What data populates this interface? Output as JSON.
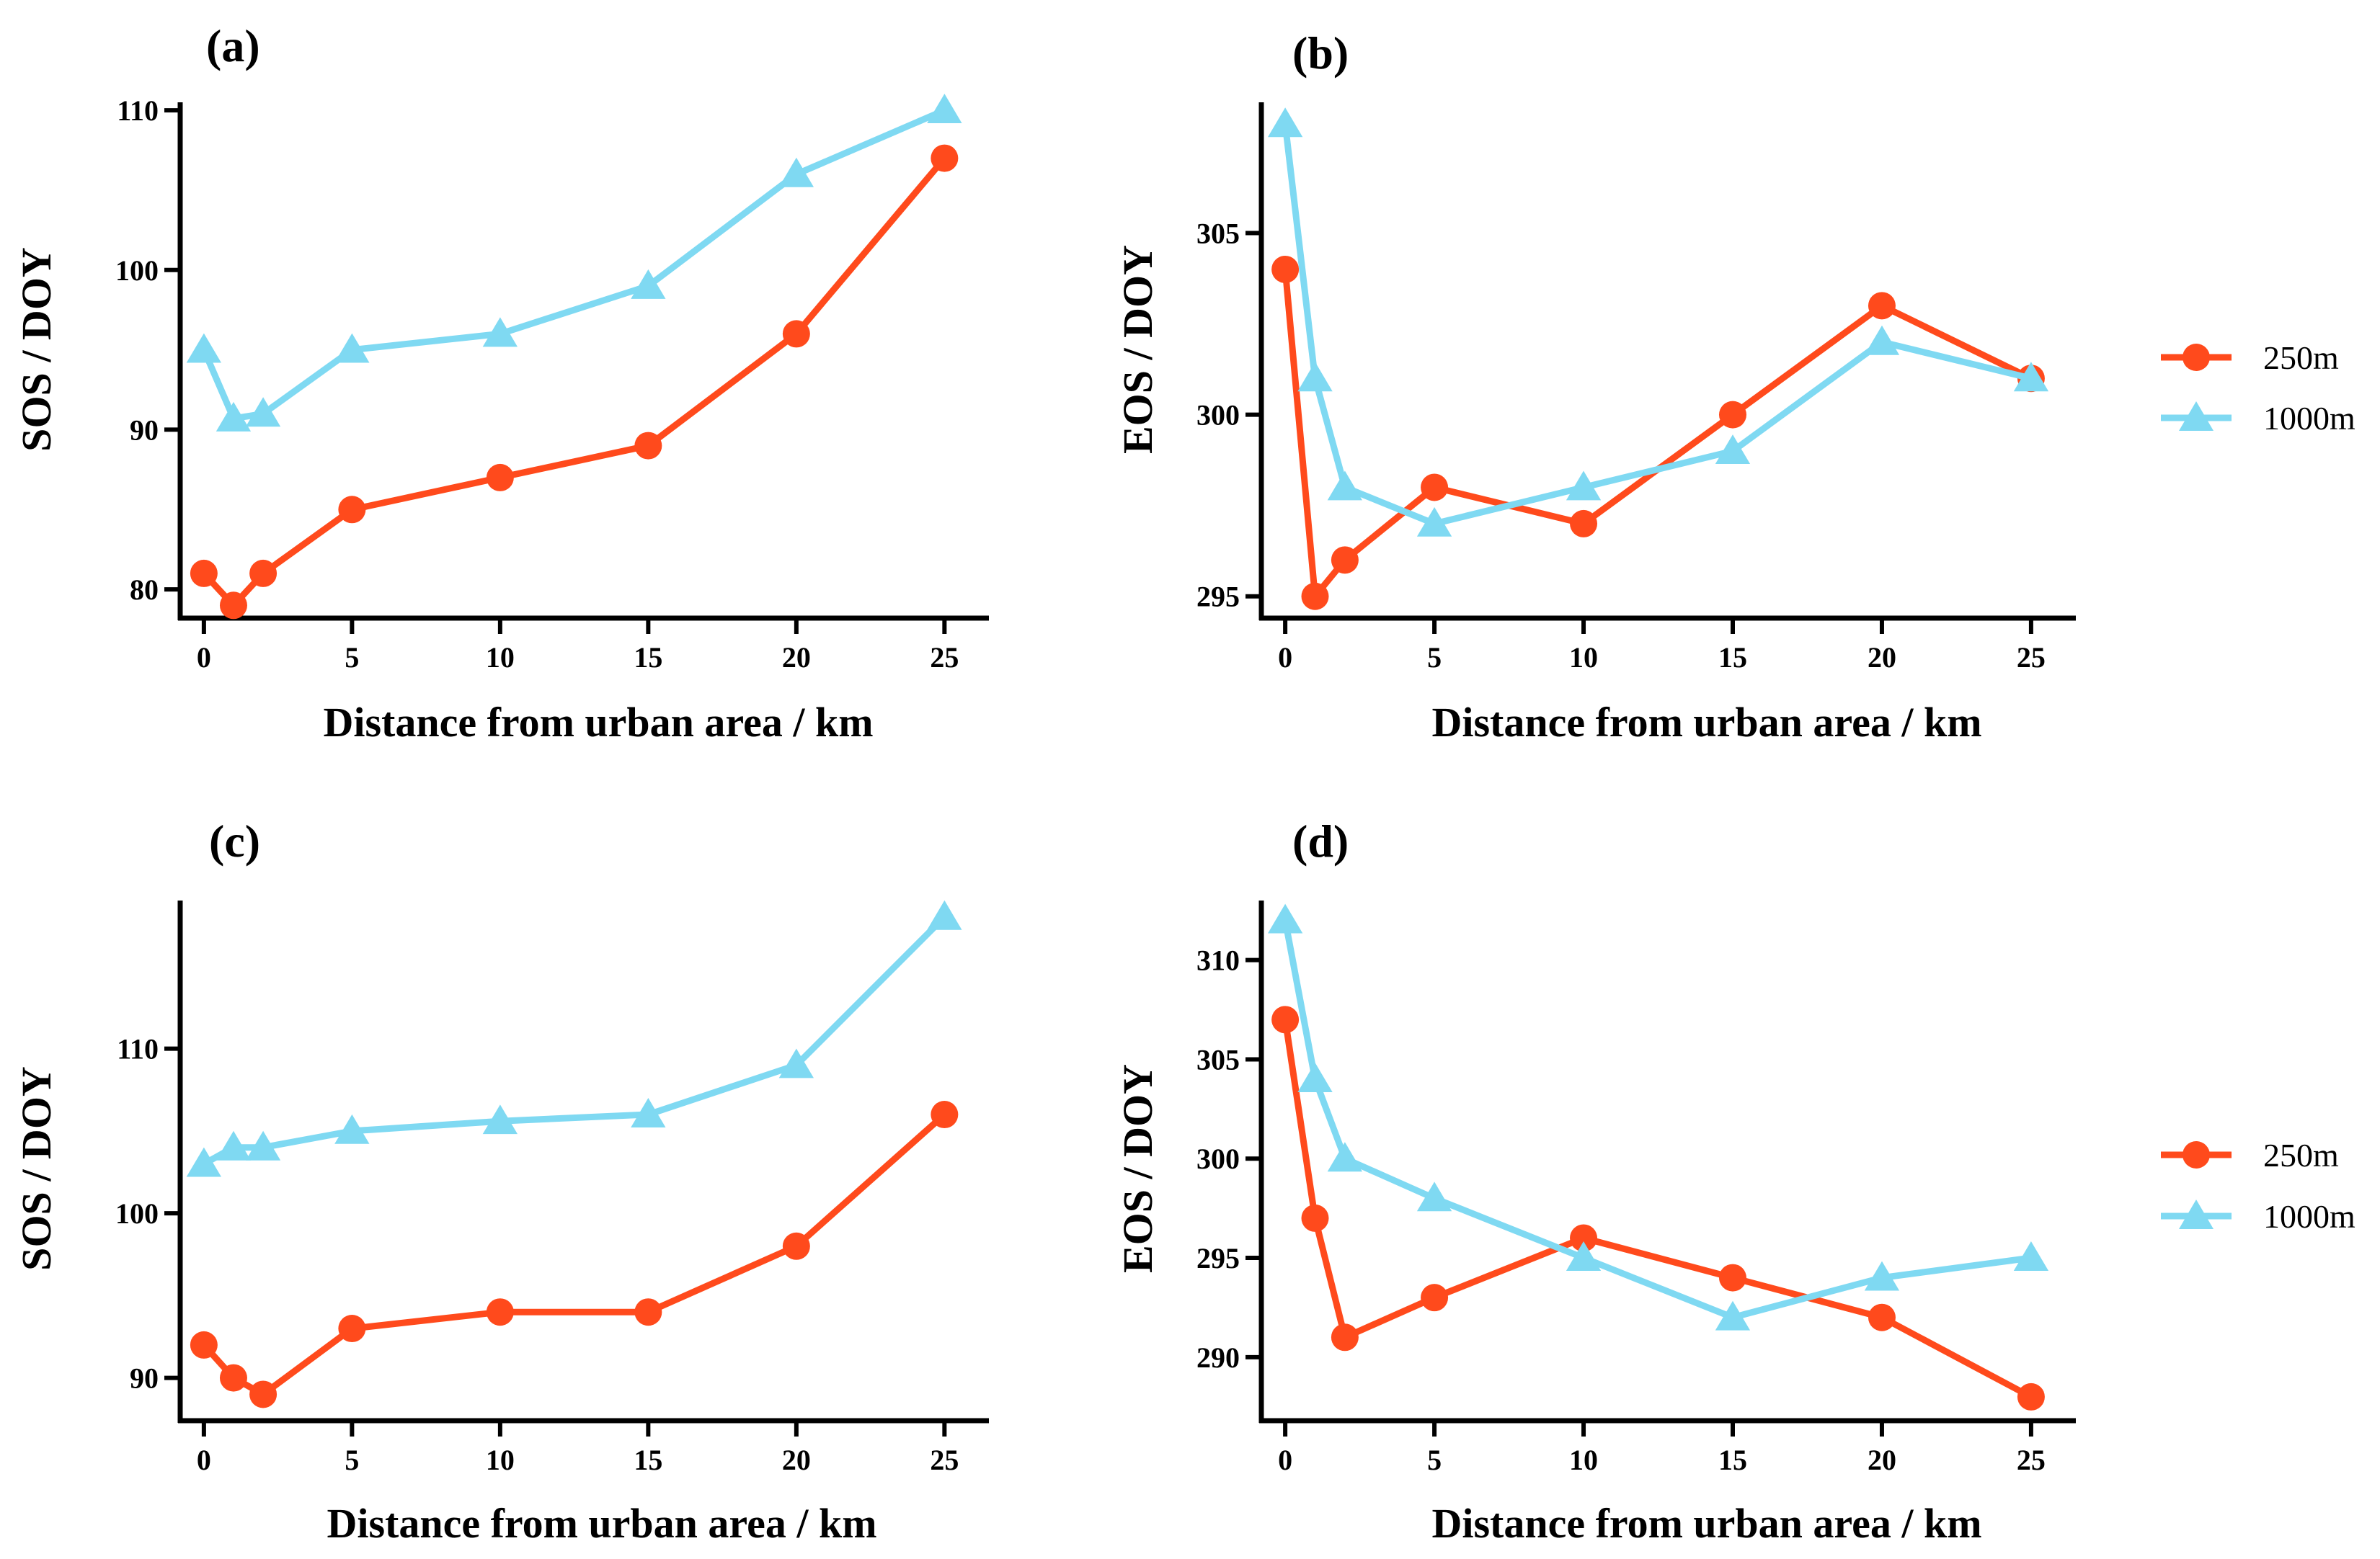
{
  "chart_data": [
    {
      "panel": "(a)",
      "type": "line",
      "xlabel": "Distance from urban area / km",
      "ylabel": "SOS / DOY",
      "x": [
        0,
        1,
        2,
        5,
        10,
        15,
        20,
        25
      ],
      "xticks": [
        0,
        5,
        10,
        15,
        20,
        25
      ],
      "xlim": [
        -0.8,
        26.5
      ],
      "ylim": [
        78.2,
        110.5
      ],
      "yticks": [
        80,
        90,
        100,
        110
      ],
      "series": [
        {
          "name": "250m",
          "values": [
            81,
            79,
            81,
            85,
            87,
            89,
            96,
            107
          ]
        },
        {
          "name": "1000m",
          "values": [
            95,
            90.7,
            91,
            95,
            96,
            99,
            106,
            110
          ]
        }
      ]
    },
    {
      "panel": "(b)",
      "type": "line",
      "xlabel": "Distance from urban area / km",
      "ylabel": "EOS / DOY",
      "x": [
        0,
        1,
        2,
        5,
        10,
        15,
        20,
        25
      ],
      "xticks": [
        0,
        5,
        10,
        15,
        20,
        25
      ],
      "xlim": [
        -0.8,
        26.5
      ],
      "ylim": [
        294.4,
        308.6
      ],
      "yticks": [
        295,
        300,
        305
      ],
      "legend": "right",
      "series": [
        {
          "name": "250m",
          "values": [
            304,
            295,
            296,
            298,
            297,
            300,
            303,
            301
          ]
        },
        {
          "name": "1000m",
          "values": [
            308,
            301,
            298,
            297,
            298,
            299,
            302,
            301
          ]
        }
      ]
    },
    {
      "panel": "(c)",
      "type": "line",
      "xlabel": "Distance from urban area / km",
      "ylabel": "SOS / DOY",
      "x": [
        0,
        1,
        2,
        5,
        10,
        15,
        20,
        25
      ],
      "xticks": [
        0,
        5,
        10,
        15,
        20,
        25
      ],
      "xlim": [
        -0.8,
        26.5
      ],
      "ylim": [
        87.4,
        119
      ],
      "yticks": [
        90,
        100,
        110
      ],
      "series": [
        {
          "name": "250m",
          "values": [
            92,
            90,
            89,
            93,
            94,
            94,
            98,
            106
          ]
        },
        {
          "name": "1000m",
          "values": [
            103,
            104,
            104,
            105,
            105.6,
            106,
            109,
            118
          ]
        }
      ]
    },
    {
      "panel": "(d)",
      "type": "line",
      "xlabel": "Distance from urban area / km",
      "ylabel": "EOS / DOY",
      "x": [
        0,
        1,
        2,
        5,
        10,
        15,
        20,
        25
      ],
      "xticks": [
        0,
        5,
        10,
        15,
        20,
        25
      ],
      "xlim": [
        -0.8,
        26.5
      ],
      "ylim": [
        286.8,
        313
      ],
      "yticks": [
        290,
        295,
        300,
        305,
        310
      ],
      "legend": "right",
      "series": [
        {
          "name": "250m",
          "values": [
            307,
            297,
            291,
            293,
            296,
            294,
            292,
            288
          ]
        },
        {
          "name": "1000m",
          "values": [
            312,
            304,
            300,
            298,
            295,
            292,
            294,
            295
          ]
        }
      ]
    }
  ],
  "colors": {
    "250m": "#FF4A1C",
    "1000m": "#7FD9F2",
    "axis": "#000000"
  },
  "markers": {
    "250m": "circle",
    "1000m": "triangle"
  }
}
